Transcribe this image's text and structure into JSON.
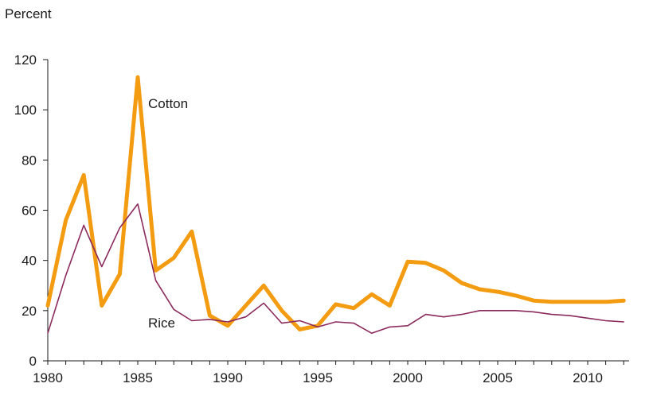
{
  "chart_data": {
    "type": "line",
    "title": "",
    "xlabel": "",
    "ylabel": "Percent",
    "xlim": [
      1980,
      2013
    ],
    "ylim": [
      0,
      120
    ],
    "x_ticks": [
      1980,
      1985,
      1990,
      1995,
      2000,
      2005,
      2010
    ],
    "y_ticks": [
      0,
      20,
      40,
      60,
      80,
      100,
      120
    ],
    "x_tick_labels": [
      "1980",
      "1985",
      "1990",
      "1995",
      "2000",
      "2005",
      "2010"
    ],
    "y_tick_labels": [
      "0",
      "20",
      "40",
      "60",
      "80",
      "100",
      "120"
    ],
    "grid": false,
    "x": [
      1980,
      1981,
      1982,
      1983,
      1984,
      1985,
      1986,
      1987,
      1988,
      1989,
      1990,
      1991,
      1992,
      1993,
      1994,
      1995,
      1996,
      1997,
      1998,
      1999,
      2000,
      2001,
      2002,
      2003,
      2004,
      2005,
      2006,
      2007,
      2008,
      2009,
      2010,
      2011,
      2012
    ],
    "series": [
      {
        "name": "Cotton",
        "color": "#f39c12",
        "values": [
          22,
          56,
          74,
          22,
          34.5,
          113,
          36,
          41,
          51.5,
          18,
          14,
          22,
          30,
          20,
          12.5,
          14,
          22.5,
          21,
          26.5,
          22,
          39.5,
          39,
          36,
          31,
          28.5,
          27.5,
          26,
          24,
          23.5,
          23.5,
          23.5,
          23.5,
          24
        ]
      },
      {
        "name": "Rice",
        "color": "#8b2a5c",
        "values": [
          11,
          34,
          54,
          37.5,
          53,
          62.5,
          32,
          20.5,
          16,
          16.5,
          15.5,
          17.5,
          23,
          15,
          16,
          13.5,
          15.5,
          15,
          11,
          13.5,
          14,
          18.5,
          17.5,
          18.5,
          20,
          20,
          20,
          19.5,
          18.5,
          18,
          17,
          16,
          15.5
        ]
      }
    ],
    "annotations": {
      "cotton_label": "Cotton",
      "rice_label": "Rice"
    }
  }
}
